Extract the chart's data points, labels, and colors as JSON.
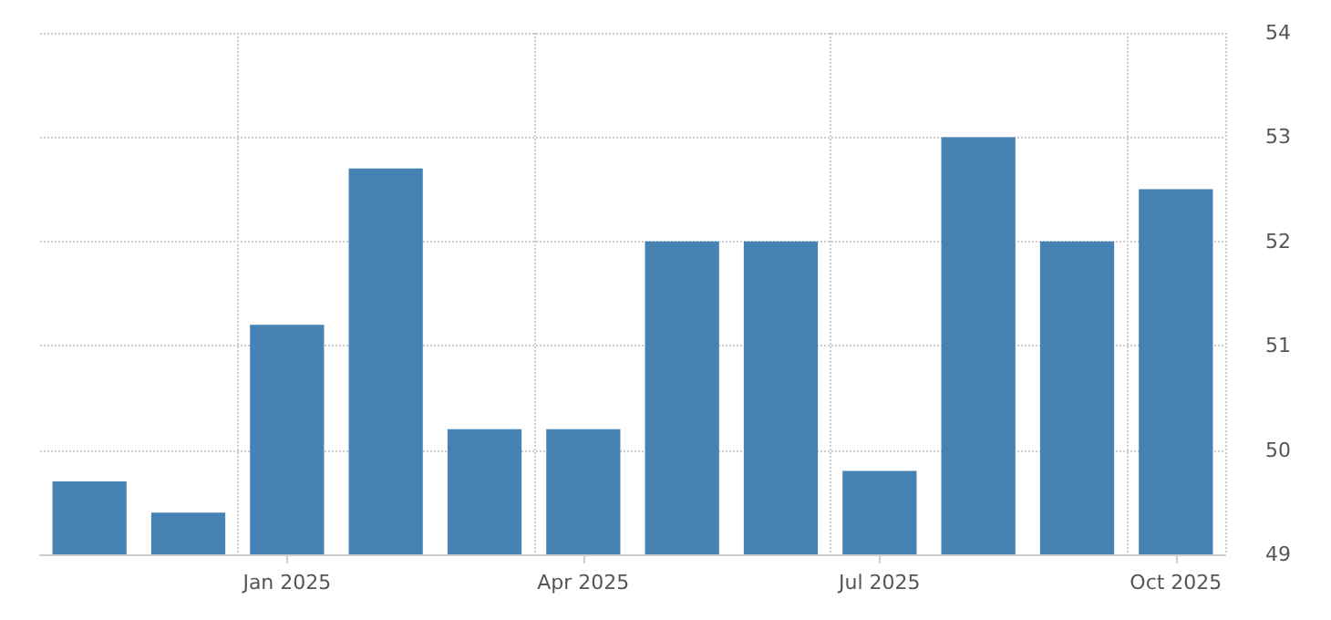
{
  "chart_data": {
    "type": "bar",
    "categories": [
      null,
      null,
      "Jan 2025",
      null,
      null,
      "Apr 2025",
      null,
      null,
      "Jul 2025",
      null,
      null,
      "Oct 2025"
    ],
    "values": [
      49.7,
      49.4,
      51.2,
      52.7,
      50.2,
      50.2,
      52.0,
      52.0,
      49.8,
      53.0,
      52.0,
      52.5
    ],
    "color": "#4682b4",
    "ylim": [
      49,
      54
    ],
    "yticks": [
      49,
      50,
      51,
      52,
      53,
      54
    ],
    "grid": true
  }
}
